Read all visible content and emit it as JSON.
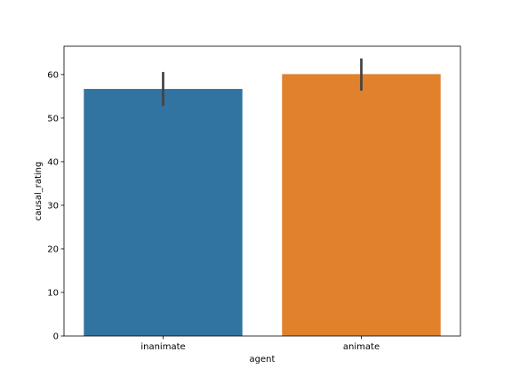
{
  "chart_data": {
    "type": "bar",
    "title": "",
    "xlabel": "agent",
    "ylabel": "causal_rating",
    "categories": [
      "inanimate",
      "animate"
    ],
    "values": [
      56.7,
      60.1
    ],
    "error_bars": [
      {
        "low": 52.8,
        "high": 60.6
      },
      {
        "low": 56.3,
        "high": 63.7
      }
    ],
    "ylim": [
      0,
      66.5
    ],
    "yticks": [
      0,
      10,
      20,
      30,
      40,
      50,
      60
    ],
    "grid": false,
    "legend": "none",
    "colors": [
      "#3274a1",
      "#e1812c"
    ],
    "error_color": "#424242",
    "axis_color": "#000000"
  }
}
